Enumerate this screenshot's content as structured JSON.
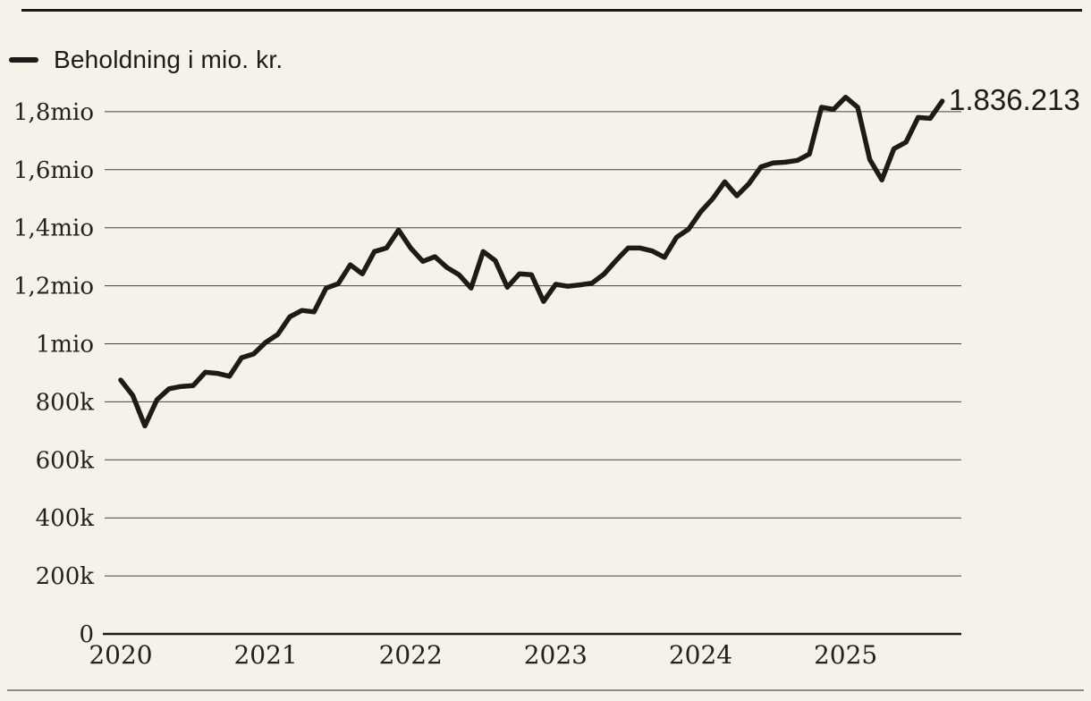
{
  "colors": {
    "background": "#f7f2e9",
    "ink": "#1d1b17",
    "line": "#1d1b17",
    "grid": "#45423c",
    "bottom_rule": "#8c8a85"
  },
  "legend": {
    "label": "Beholdning i mio. kr."
  },
  "chart_data": {
    "type": "line",
    "title": "",
    "xlabel": "",
    "ylabel": "",
    "grid": "horizontal",
    "legend_position": "top-left",
    "ylim": [
      0,
      1900000
    ],
    "end_label": "1.836.213",
    "last_value": 1836213,
    "x_tick_labels": [
      "2020",
      "2021",
      "2022",
      "2023",
      "2024",
      "2025"
    ],
    "y_ticks": [
      {
        "label": "0",
        "value": 0
      },
      {
        "label": "200k",
        "value": 200000
      },
      {
        "label": "400k",
        "value": 400000
      },
      {
        "label": "600k",
        "value": 600000
      },
      {
        "label": "800k",
        "value": 800000
      },
      {
        "label": "1mio",
        "value": 1000000
      },
      {
        "label": "1,2mio",
        "value": 1200000
      },
      {
        "label": "1,4mio",
        "value": 1400000
      },
      {
        "label": "1,6mio",
        "value": 1600000
      },
      {
        "label": "1,8mio",
        "value": 1800000
      }
    ],
    "x": [
      "2020-01",
      "2020-02",
      "2020-03",
      "2020-04",
      "2020-05",
      "2020-06",
      "2020-07",
      "2020-08",
      "2020-09",
      "2020-10",
      "2020-11",
      "2020-12",
      "2021-01",
      "2021-02",
      "2021-03",
      "2021-04",
      "2021-05",
      "2021-06",
      "2021-07",
      "2021-08",
      "2021-09",
      "2021-10",
      "2021-11",
      "2021-12",
      "2022-01",
      "2022-02",
      "2022-03",
      "2022-04",
      "2022-05",
      "2022-06",
      "2022-07",
      "2022-08",
      "2022-09",
      "2022-10",
      "2022-11",
      "2022-12",
      "2023-01",
      "2023-02",
      "2023-03",
      "2023-04",
      "2023-05",
      "2023-06",
      "2023-07",
      "2023-08",
      "2023-09",
      "2023-10",
      "2023-11",
      "2023-12",
      "2024-01",
      "2024-02",
      "2024-03",
      "2024-04",
      "2024-05",
      "2024-06",
      "2024-07",
      "2024-08",
      "2024-09",
      "2024-10",
      "2024-11",
      "2024-12",
      "2025-01",
      "2025-02",
      "2025-03",
      "2025-04",
      "2025-05",
      "2025-06",
      "2025-07",
      "2025-08",
      "2025-09"
    ],
    "series": [
      {
        "name": "Beholdning i mio. kr.",
        "values": [
          875000,
          822000,
          717000,
          807000,
          845000,
          853000,
          856000,
          902000,
          898000,
          888000,
          952000,
          965000,
          1005000,
          1032000,
          1093000,
          1115000,
          1110000,
          1192000,
          1207000,
          1272000,
          1241000,
          1318000,
          1330000,
          1392000,
          1330000,
          1284000,
          1300000,
          1263000,
          1238000,
          1192000,
          1318000,
          1287000,
          1195000,
          1241000,
          1238000,
          1146000,
          1205000,
          1198000,
          1203000,
          1209000,
          1240000,
          1287000,
          1330000,
          1330000,
          1320000,
          1298000,
          1367000,
          1395000,
          1455000,
          1500000,
          1558000,
          1510000,
          1552000,
          1610000,
          1623000,
          1626000,
          1632000,
          1654000,
          1815000,
          1808000,
          1850000,
          1815000,
          1635000,
          1565000,
          1672000,
          1695000,
          1780000,
          1777000,
          1836213
        ]
      }
    ]
  }
}
